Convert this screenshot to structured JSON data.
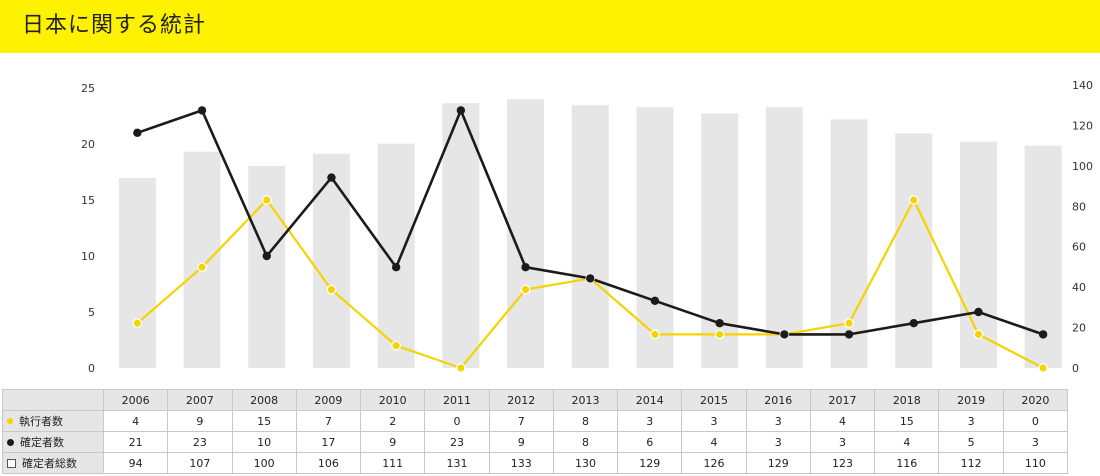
{
  "header": {
    "title": "日本に関する統計"
  },
  "chart_data": {
    "type": "bar+line",
    "categories": [
      "2006",
      "2007",
      "2008",
      "2009",
      "2010",
      "2011",
      "2012",
      "2013",
      "2014",
      "2015",
      "2016",
      "2017",
      "2018",
      "2019",
      "2020"
    ],
    "left_axis": {
      "ticks": [
        "0",
        "5",
        "10",
        "15",
        "20",
        "25"
      ],
      "ylim": [
        0,
        25
      ]
    },
    "right_axis": {
      "ticks": [
        "0",
        "20",
        "40",
        "60",
        "80",
        "100",
        "120",
        "140"
      ],
      "ylim": [
        0,
        140
      ]
    },
    "series": [
      {
        "name": "執行者数",
        "type": "line",
        "axis": "left",
        "color": "#f5d300",
        "values": [
          4,
          9,
          15,
          7,
          2,
          0,
          7,
          8,
          3,
          3,
          3,
          4,
          15,
          3,
          0
        ]
      },
      {
        "name": "確定者数",
        "type": "line",
        "axis": "left",
        "color": "#1f1a1a",
        "values": [
          21,
          23,
          10,
          17,
          9,
          23,
          9,
          8,
          6,
          4,
          3,
          3,
          4,
          5,
          3
        ]
      },
      {
        "name": "確定者総数",
        "type": "bar",
        "axis": "right",
        "color": "#e6e6e6",
        "values": [
          94,
          107,
          100,
          106,
          111,
          131,
          133,
          130,
          129,
          126,
          129,
          123,
          116,
          112,
          110
        ]
      }
    ],
    "grid": false
  }
}
